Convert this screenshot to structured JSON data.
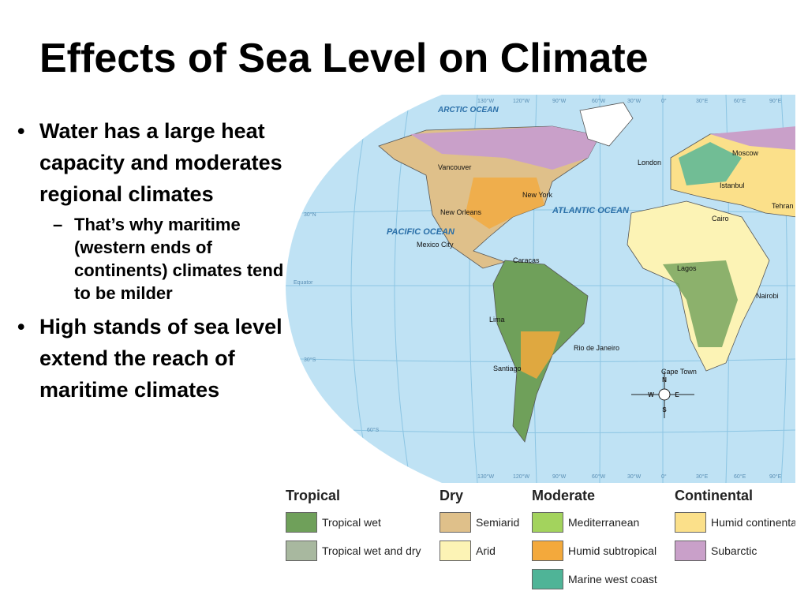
{
  "title": "Effects of Sea Level on Climate",
  "bullets": [
    {
      "text": "Water has a large heat capacity and moderates regional climates",
      "sub": [
        "That’s why maritime (western ends of continents) climates tend to be milder"
      ]
    },
    {
      "text": "High stands of sea level extend the reach of maritime climates",
      "sub": []
    }
  ],
  "map": {
    "oceans": [
      "ARCTIC OCEAN",
      "PACIFIC OCEAN",
      "ATLANTIC OCEAN"
    ],
    "cities": [
      "Vancouver",
      "New York",
      "New Orleans",
      "Mexico City",
      "Caracas",
      "Lima",
      "Rio de Janeiro",
      "Santiago",
      "Cape Town",
      "London",
      "Moscow",
      "Istanbul",
      "Tehran",
      "Cairo",
      "Lagos",
      "Nairobi"
    ],
    "longitudes": [
      "130°W",
      "120°W",
      "90°W",
      "60°W",
      "30°W",
      "0°",
      "30°E",
      "60°E",
      "90°E"
    ],
    "latitudes": [
      "30°N",
      "Equator",
      "30°S",
      "60°S"
    ],
    "compass": [
      "N",
      "S",
      "E",
      "W"
    ]
  },
  "legend": [
    {
      "heading": "Tropical",
      "items": [
        {
          "label": "Tropical wet",
          "color": "#6fa05a"
        },
        {
          "label": "Tropical wet and dry",
          "color": "#a8b89f"
        }
      ]
    },
    {
      "heading": "Dry",
      "items": [
        {
          "label": "Semiarid",
          "color": "#dfc08a"
        },
        {
          "label": "Arid",
          "color": "#fcf3b5"
        }
      ]
    },
    {
      "heading": "Moderate",
      "items": [
        {
          "label": "Mediterranean",
          "color": "#a3d35d"
        },
        {
          "label": "Humid subtropical",
          "color": "#f3a93c"
        },
        {
          "label": "Marine west coast",
          "color": "#4fb497"
        }
      ]
    },
    {
      "heading": "Continental",
      "items": [
        {
          "label": "Humid continental",
          "color": "#fbe08a"
        },
        {
          "label": "Subarctic",
          "color": "#c9a0c9"
        }
      ]
    }
  ]
}
